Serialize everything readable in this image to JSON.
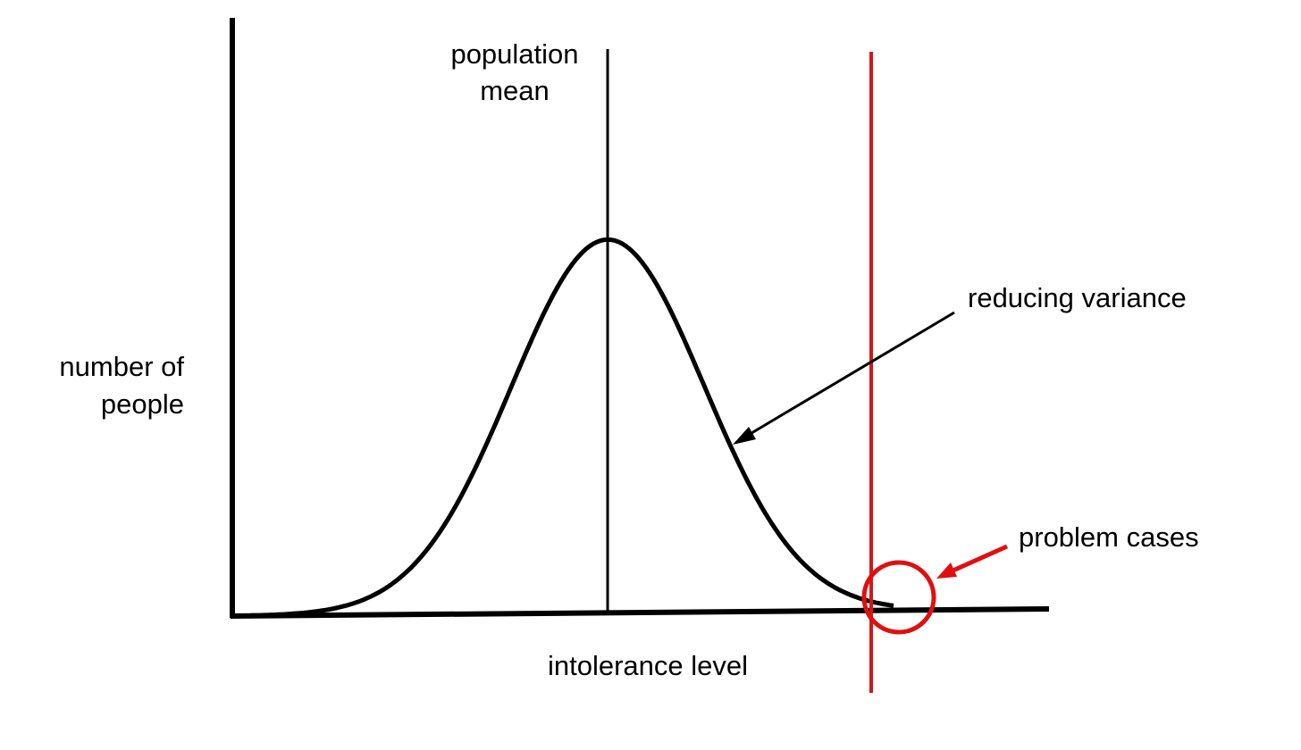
{
  "labels": {
    "mean": [
      "population",
      "mean"
    ],
    "y_axis": [
      "number of",
      "people"
    ],
    "x_axis": "intolerance level",
    "curve": "reducing variance",
    "threshold": "problem cases"
  }
}
